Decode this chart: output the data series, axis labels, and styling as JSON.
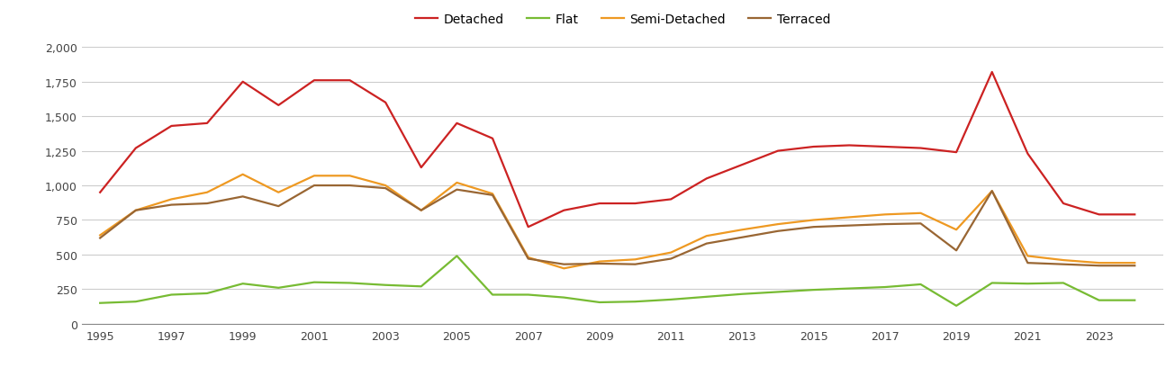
{
  "years": [
    1995,
    1996,
    1997,
    1998,
    1999,
    2000,
    2001,
    2002,
    2003,
    2004,
    2005,
    2006,
    2007,
    2008,
    2009,
    2010,
    2011,
    2012,
    2013,
    2014,
    2015,
    2016,
    2017,
    2018,
    2019,
    2020,
    2021,
    2022,
    2023,
    2024
  ],
  "detached": [
    950,
    1270,
    1430,
    1450,
    1750,
    1580,
    1760,
    1760,
    1600,
    1130,
    1450,
    1340,
    700,
    820,
    870,
    870,
    900,
    1050,
    1150,
    1250,
    1280,
    1290,
    1280,
    1270,
    1240,
    1820,
    1230,
    870,
    790,
    790
  ],
  "flat": [
    150,
    160,
    210,
    220,
    290,
    260,
    300,
    295,
    280,
    270,
    490,
    210,
    210,
    190,
    155,
    160,
    175,
    195,
    215,
    230,
    245,
    255,
    265,
    285,
    130,
    295,
    290,
    295,
    170,
    170
  ],
  "semi_detached": [
    640,
    820,
    900,
    950,
    1080,
    950,
    1070,
    1070,
    1000,
    820,
    1020,
    940,
    480,
    400,
    450,
    465,
    515,
    635,
    680,
    720,
    750,
    770,
    790,
    800,
    680,
    960,
    490,
    460,
    440,
    440
  ],
  "terraced": [
    620,
    820,
    860,
    870,
    920,
    850,
    1000,
    1000,
    980,
    820,
    970,
    930,
    470,
    430,
    435,
    430,
    470,
    580,
    625,
    670,
    700,
    710,
    720,
    725,
    530,
    960,
    440,
    430,
    420,
    420
  ],
  "colors": {
    "detached": "#cc2222",
    "flat": "#77bb33",
    "semi_detached": "#ee9922",
    "terraced": "#996633"
  },
  "ylim": [
    0,
    2000
  ],
  "yticks": [
    0,
    250,
    500,
    750,
    1000,
    1250,
    1500,
    1750,
    2000
  ],
  "ytick_labels": [
    "0",
    "250",
    "500",
    "750",
    "1,000",
    "1,250",
    "1,500",
    "1,750",
    "2,000"
  ],
  "xtick_positions": [
    1995,
    1997,
    1999,
    2001,
    2003,
    2005,
    2007,
    2009,
    2011,
    2013,
    2015,
    2017,
    2019,
    2021,
    2023
  ],
  "xtick_labels": [
    "1995",
    "1997",
    "1999",
    "2001",
    "2003",
    "2005",
    "2007",
    "2009",
    "2011",
    "2013",
    "2015",
    "2017",
    "2019",
    "2021",
    "2023"
  ],
  "legend_labels": [
    "Detached",
    "Flat",
    "Semi-Detached",
    "Terraced"
  ],
  "background_color": "#ffffff",
  "grid_color": "#cccccc",
  "line_width": 1.6,
  "xlim_left": 1994.5,
  "xlim_right": 2024.8
}
